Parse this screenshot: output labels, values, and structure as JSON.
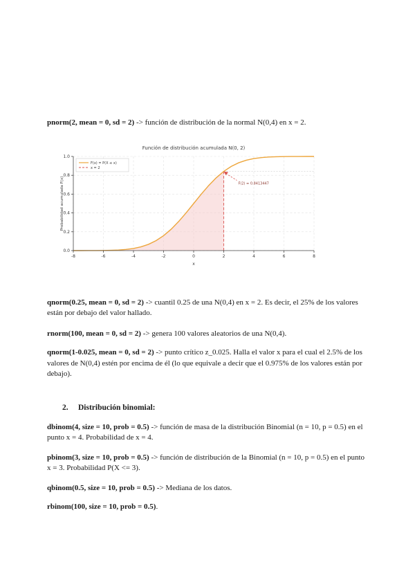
{
  "heading": {
    "number": "2.",
    "label": "Distribución binomial:"
  },
  "blocks": [
    {
      "code": "pnorm(2, mean = 0, sd = 2)",
      "rest": " -> función de distribución de la normal N(0,4) en x = 2."
    },
    {
      "code": "qnorm(0.25, mean = 0, sd = 2)",
      "rest": " -> cuantil 0.25 de una N(0,4) en x = 2. Es decir, el 25% de los valores están por debajo del valor hallado."
    },
    {
      "code": "rnorm(100, mean = 0, sd = 2)",
      "rest": " -> genera 100 valores aleatorios de una N(0,4)."
    },
    {
      "code": "qnorm(1-0.025, mean = 0, sd = 2)",
      "rest": " -> punto crítico z_0.025. Halla el valor x para el cual el 2.5% de los valores de N(0,4) estén por encima de él (lo que equivale a decir que el 0.975% de los valores están por debajo)."
    },
    {
      "code": "dbinom(4, size = 10, prob = 0.5)",
      "rest": " -> función de masa de la distribución Binomial (n = 10, p = 0.5) en el punto x = 4. Probabilidad de x = 4."
    },
    {
      "code": "pbinom(3, size = 10, prob = 0.5)",
      "rest": " -> función de distribución de la Binomial (n = 10, p = 0.5) en el punto x = 3. Probabilidad P(X <= 3)."
    },
    {
      "code": "qbinom(0.5, size = 10, prob = 0.5)",
      "rest": " -> Mediana de los datos."
    },
    {
      "code": "rbinom(100, size = 10, prob = 0.5)",
      "rest": "."
    }
  ],
  "chart_data": {
    "type": "line",
    "title": "Función de distribución acumulada N(0, 2)",
    "xlabel": "x",
    "ylabel": "Probabilidad acumulada F(x)",
    "xlim": [
      -8,
      8
    ],
    "ylim": [
      0,
      1
    ],
    "xticks": [
      -8,
      -6,
      -4,
      -2,
      0,
      2,
      4,
      6,
      8
    ],
    "yticks": [
      0.0,
      0.2,
      0.4,
      0.6,
      0.8,
      1.0
    ],
    "grid": true,
    "legend_position": "upper-left",
    "legend": [
      {
        "label": "F(x) = P(X ≤ x)",
        "style": "solid"
      },
      {
        "label": "x = 2",
        "style": "dashed"
      }
    ],
    "marker_x": 2,
    "annotation": {
      "text": "F(2) = 0.8413447",
      "x": 2,
      "y": 0.8413447
    },
    "shaded_region": "area under curve from x = -8 to x = 2",
    "series": [
      {
        "name": "F(x) = P(X ≤ x)",
        "x": [
          -8,
          -7.5,
          -7,
          -6.5,
          -6,
          -5.5,
          -5,
          -4.5,
          -4,
          -3.5,
          -3,
          -2.5,
          -2,
          -1.5,
          -1,
          -0.5,
          0,
          0.5,
          1,
          1.5,
          2,
          2.5,
          3,
          3.5,
          4,
          4.5,
          5,
          5.5,
          6,
          6.5,
          7,
          7.5,
          8
        ],
        "y": [
          3e-05,
          9e-05,
          0.00023,
          0.00058,
          0.00135,
          0.00298,
          0.00621,
          0.01222,
          0.02275,
          0.04006,
          0.06681,
          0.10565,
          0.15866,
          0.22663,
          0.30854,
          0.40129,
          0.5,
          0.59871,
          0.69146,
          0.77337,
          0.84134,
          0.89435,
          0.93319,
          0.95994,
          0.97725,
          0.98778,
          0.99379,
          0.99702,
          0.99865,
          0.99942,
          0.99977,
          0.99991,
          0.99997
        ]
      }
    ],
    "colors": {
      "curve": "#eda63c",
      "marker": "#d9534f",
      "fill": "#f6c8c8",
      "grid": "#e2e2e2",
      "spine": "#444444",
      "text": "#3a3a3a",
      "annotation_text": "#8e3b32"
    }
  }
}
